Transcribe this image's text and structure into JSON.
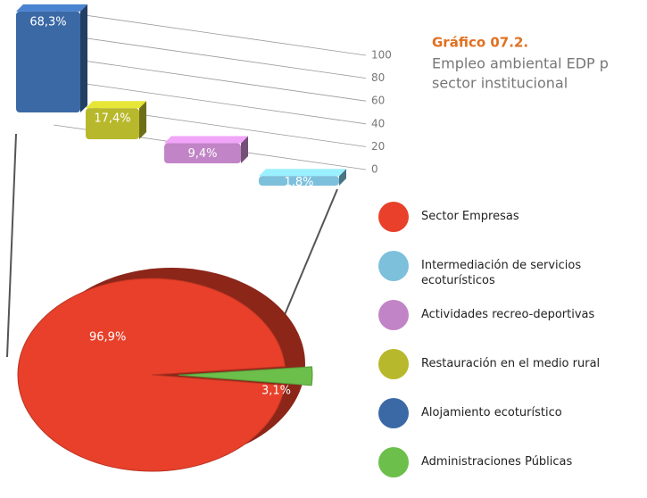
{
  "chart_data": [
    {
      "type": "bar",
      "title": "Gráfico 07.2.",
      "subtitle": [
        "Empleo ambiental EDP p",
        "sector institucional"
      ],
      "categories": [
        "Alojamiento ecoturístico",
        "Restauración en el medio rural",
        "Actividades recreo-deportivas",
        "Intermediación de servicios ecoturísticos"
      ],
      "values": [
        68.3,
        17.4,
        9.4,
        1.8
      ],
      "value_labels": [
        "68,3%",
        "17,4%",
        "9,4%",
        "1,8%"
      ],
      "colors": [
        "#3b69a6",
        "#b8b82c",
        "#c184c6",
        "#7cc0dc"
      ],
      "ylim": [
        0,
        100
      ],
      "yticks": [
        0,
        20,
        40,
        60,
        80,
        100
      ],
      "grid": true
    },
    {
      "type": "pie",
      "labels": [
        "Sector Empresas",
        "Administraciones Públicas"
      ],
      "values": [
        96.9,
        3.1
      ],
      "value_labels": [
        "96,9%",
        "3,1%"
      ],
      "colors": [
        "#e8402a",
        "#6cbf4a"
      ]
    }
  ]
}
